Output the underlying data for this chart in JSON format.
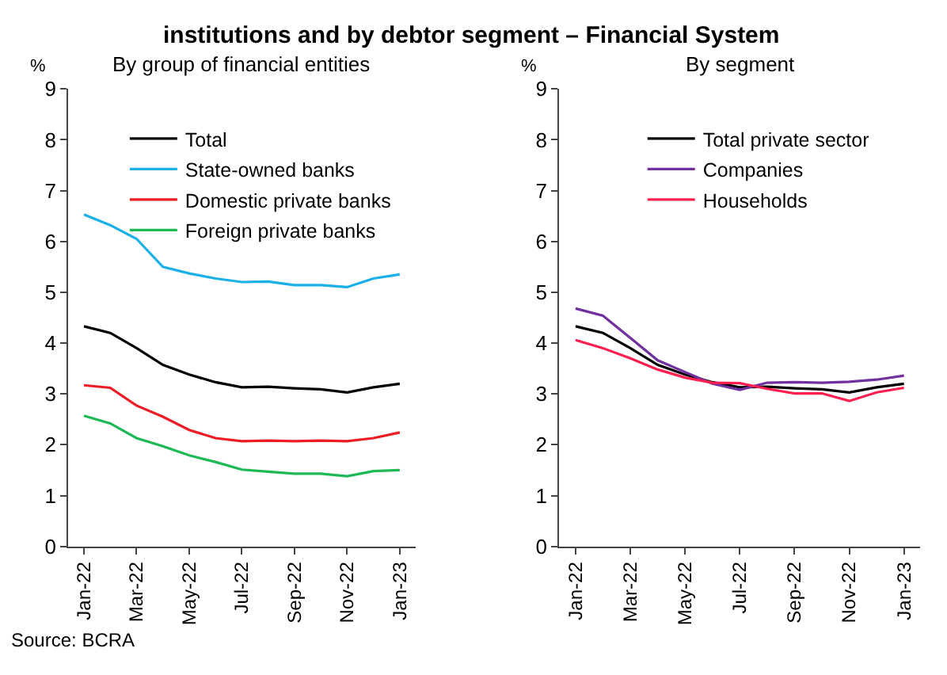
{
  "chart_data": [
    {
      "type": "line",
      "title": "By group of financial entities",
      "ylabel": "%",
      "annotations": [
        "institutions and by debtor segment – Financial System",
        "Source: BCRA"
      ],
      "categories": [
        "Jan-22",
        null,
        "Mar-22",
        null,
        "May-22",
        null,
        "Jul-22",
        null,
        "Sep-22",
        null,
        "Nov-22",
        null,
        "Jan-23"
      ],
      "series": [
        {
          "name": "Total",
          "color": "#000000",
          "values": [
            4.33,
            4.2,
            3.9,
            3.57,
            3.38,
            3.23,
            3.13,
            3.14,
            3.11,
            3.09,
            3.03,
            3.13,
            3.2
          ]
        },
        {
          "name": "State-owned banks",
          "color": "#1ab0e8",
          "values": [
            6.53,
            6.32,
            6.05,
            5.5,
            5.37,
            5.27,
            5.2,
            5.21,
            5.14,
            5.14,
            5.1,
            5.27,
            5.35
          ]
        },
        {
          "name": "Domestic private banks",
          "color": "#ee1c25",
          "values": [
            3.17,
            3.12,
            2.77,
            2.55,
            2.29,
            2.13,
            2.07,
            2.08,
            2.07,
            2.08,
            2.07,
            2.13,
            2.24
          ]
        },
        {
          "name": "Foreign private banks",
          "color": "#1db954",
          "values": [
            2.57,
            2.42,
            2.13,
            1.97,
            1.79,
            1.66,
            1.51,
            1.47,
            1.43,
            1.43,
            1.38,
            1.48,
            1.5
          ]
        }
      ],
      "ylim": [
        0,
        9
      ],
      "yticks": [
        0,
        1,
        2,
        3,
        4,
        5,
        6,
        7,
        8,
        9
      ],
      "legend": "top",
      "marker": "none",
      "line_style": "solid"
    },
    {
      "type": "line",
      "title": "By segment",
      "ylabel": "%",
      "categories": [
        "Jan-22",
        null,
        "Mar-22",
        null,
        "May-22",
        null,
        "Jul-22",
        null,
        "Sep-22",
        null,
        "Nov-22",
        null,
        "Jan-23"
      ],
      "series": [
        {
          "name": "Total private sector",
          "color": "#000000",
          "values": [
            4.33,
            4.2,
            3.9,
            3.57,
            3.38,
            3.23,
            3.13,
            3.14,
            3.11,
            3.09,
            3.03,
            3.13,
            3.2
          ]
        },
        {
          "name": "Companies",
          "color": "#7030a0",
          "values": [
            4.68,
            4.54,
            4.1,
            3.66,
            3.43,
            3.2,
            3.08,
            3.22,
            3.23,
            3.22,
            3.24,
            3.28,
            3.36
          ]
        },
        {
          "name": "Households",
          "color": "#ff2050",
          "values": [
            4.06,
            3.9,
            3.7,
            3.48,
            3.32,
            3.22,
            3.21,
            3.1,
            3.01,
            3.01,
            2.86,
            3.03,
            3.12
          ]
        }
      ],
      "ylim": [
        0,
        9
      ],
      "yticks": [
        0,
        1,
        2,
        3,
        4,
        5,
        6,
        7,
        8,
        9
      ],
      "legend": "top",
      "marker": "none",
      "line_style": "solid"
    }
  ]
}
